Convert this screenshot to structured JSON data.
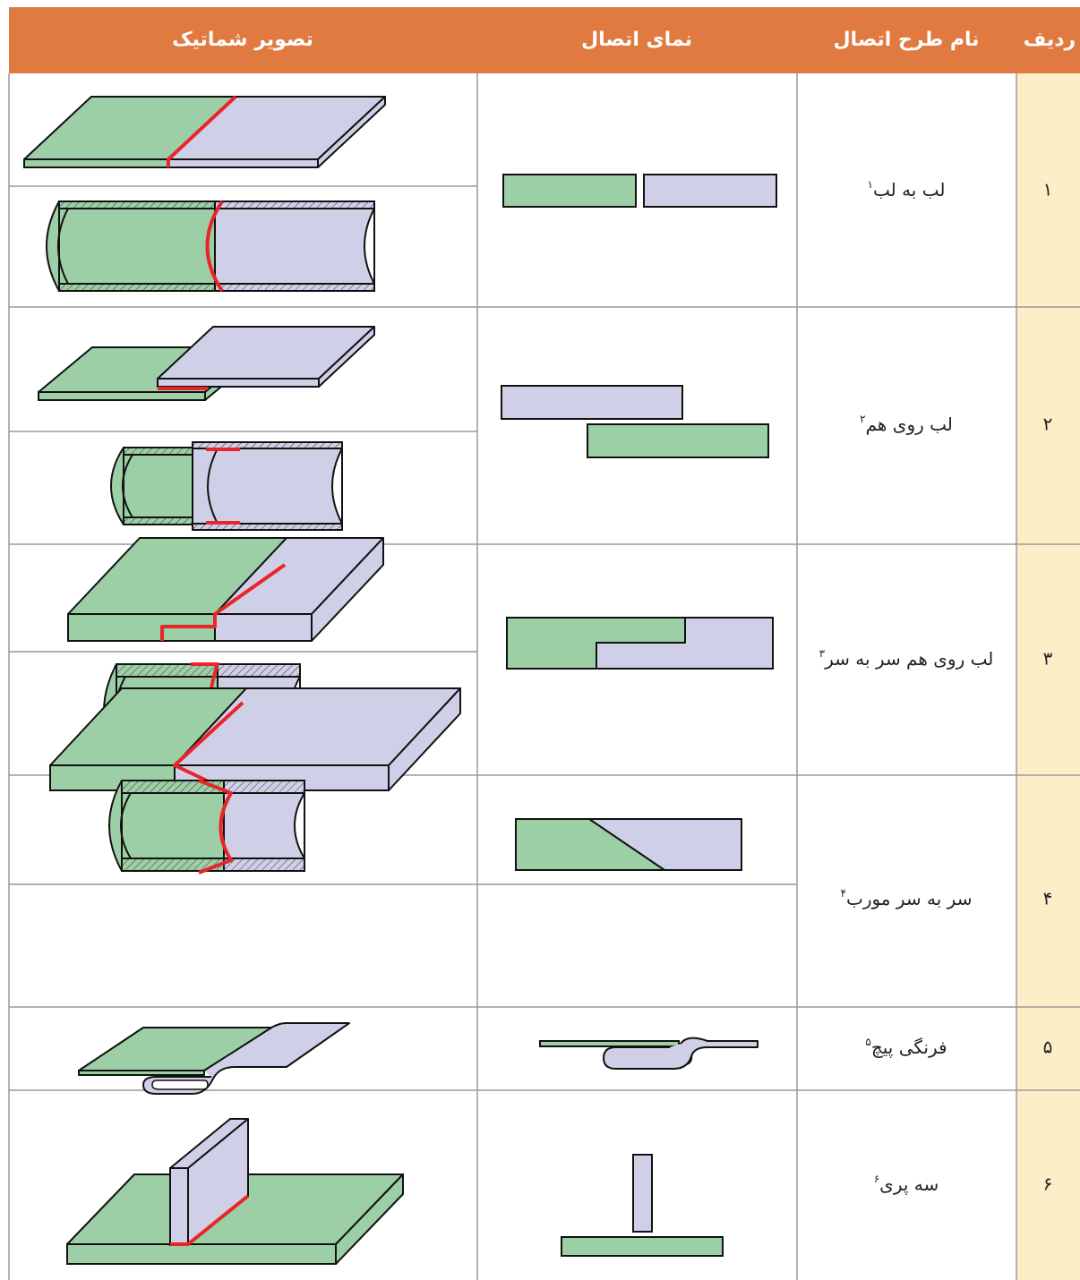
{
  "header": [
    "ردیف",
    "نام طرح اتصال",
    "نمای اتصال",
    "تصویر شماتیک"
  ],
  "rows": [
    {
      "number": "۱",
      "name": "لب به لب",
      "footnote": "۱"
    },
    {
      "number": "۲",
      "name": "لب روی هم",
      "footnote": "۲"
    },
    {
      "number": "۳",
      "name": "لب روی هم سر به سر",
      "footnote": "۳"
    },
    {
      "number": "۴",
      "name": "سر به سر مورب",
      "footnote": "۴"
    },
    {
      "number": "۵",
      "name": "فرنگی پیچ",
      "footnote": "۵"
    },
    {
      "number": "۶",
      "name": "سه پری",
      "footnote": "۶"
    }
  ]
}
